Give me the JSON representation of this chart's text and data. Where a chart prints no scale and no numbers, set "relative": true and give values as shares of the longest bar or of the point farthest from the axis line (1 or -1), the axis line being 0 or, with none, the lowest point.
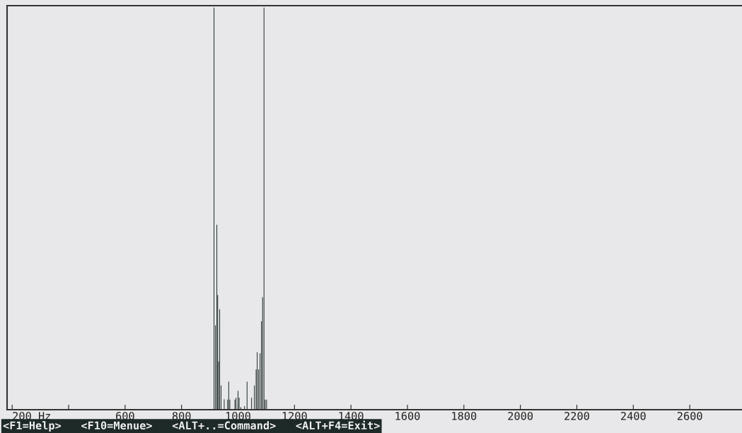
{
  "chart_data": {
    "type": "bar",
    "relative": true,
    "color": "#1e2a28",
    "x": [
      915,
      920,
      925,
      928,
      931,
      935,
      940,
      951,
      963,
      967,
      971,
      989,
      993,
      1000,
      1004,
      1010,
      1023,
      1032,
      1048,
      1058,
      1064,
      1068,
      1073,
      1078,
      1083,
      1087,
      1092,
      1096,
      1101
    ],
    "values": [
      1.0,
      0.21,
      0.46,
      0.285,
      0.12,
      0.25,
      0.06,
      0.026,
      0.025,
      0.07,
      0.025,
      0.025,
      0.03,
      0.047,
      0.03,
      0.006,
      0.009,
      0.07,
      0.03,
      0.06,
      0.1,
      0.143,
      0.1,
      0.14,
      0.22,
      0.28,
      1.0,
      0.025,
      0.025
    ],
    "xlim": [
      182,
      2785
    ],
    "xticks": [
      {
        "value": 200,
        "label": "200 Hz"
      },
      {
        "value": 400,
        "label": null
      },
      600,
      800,
      1000,
      1200,
      1400,
      1600,
      1800,
      2000,
      2200,
      2400,
      2600
    ],
    "annotations": [
      "<F1=Help>   <F10=Menue>   <ALT+..=Command>   <ALT+F4=Exit>"
    ]
  }
}
